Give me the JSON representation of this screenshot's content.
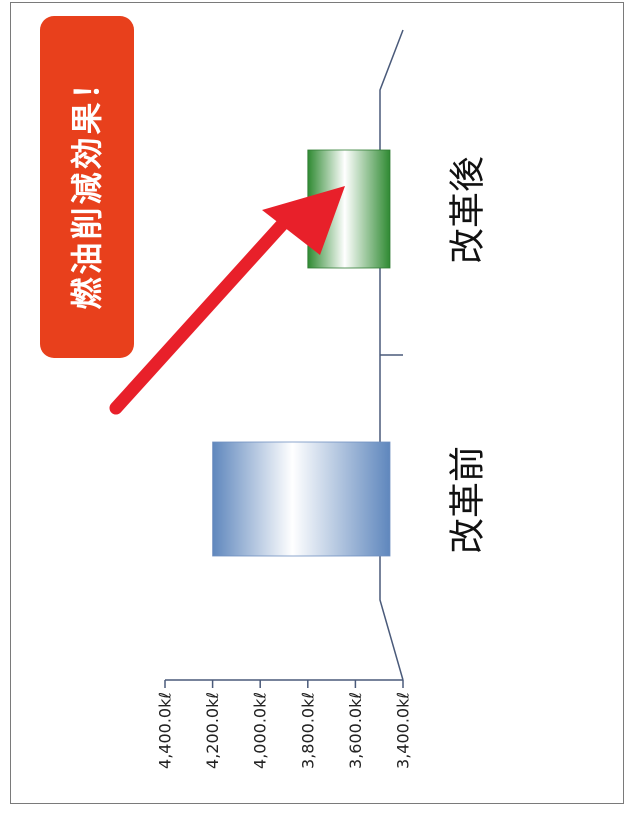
{
  "chart_data": {
    "type": "bar",
    "orientation": "rotated-90-clockwise",
    "categories": [
      "改革前",
      "改革後"
    ],
    "values": [
      4200,
      3800
    ],
    "ylim": [
      3400,
      4400
    ],
    "yticks": [
      3400,
      3600,
      3800,
      4000,
      4200,
      4400
    ],
    "tick_labels": [
      "3,400.0kℓ",
      "3,600.0kℓ",
      "3,800.0kℓ",
      "4,000.0kℓ",
      "4,200.0kℓ",
      "4,400.0kℓ"
    ],
    "bar_colors": [
      "#8fb3de",
      "#4aa84a"
    ],
    "annotation": "燃油削減効果！",
    "annotation_color": "#e8401c",
    "arrow_color": "#e8202a",
    "grid": false
  }
}
